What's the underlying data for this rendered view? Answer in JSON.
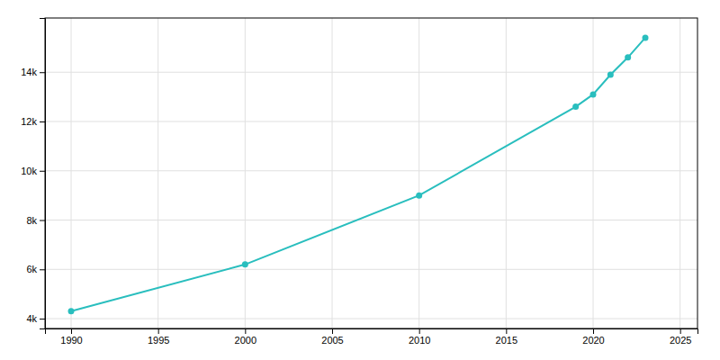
{
  "chart_data": {
    "type": "line",
    "x": [
      1990,
      2000,
      2010,
      2019,
      2020,
      2021,
      2022,
      2023
    ],
    "values": [
      4300,
      6200,
      9000,
      12600,
      13100,
      13900,
      14600,
      15400
    ],
    "color": "#29bebe",
    "marker": "circle",
    "xlim": [
      1988.5,
      2026
    ],
    "ylim": [
      3600,
      16200
    ],
    "xticks": [
      1990,
      1995,
      2000,
      2005,
      2010,
      2015,
      2020,
      2025
    ],
    "yticks": [
      {
        "value": 4000,
        "label": "4k"
      },
      {
        "value": 6000,
        "label": "6k"
      },
      {
        "value": 8000,
        "label": "8k"
      },
      {
        "value": 10000,
        "label": "10k"
      },
      {
        "value": 12000,
        "label": "12k"
      },
      {
        "value": 14000,
        "label": "14k"
      }
    ],
    "grid": true
  }
}
